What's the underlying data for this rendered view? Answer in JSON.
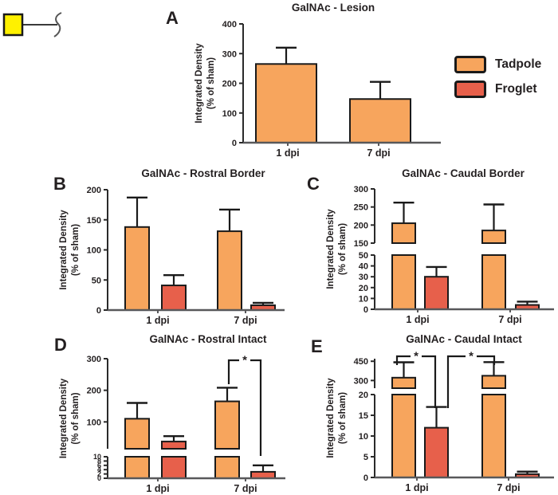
{
  "figure": {
    "glycan_symbol": "GalNAc yellow square with linker squiggle",
    "legend": {
      "items": [
        {
          "label": "Tadpole",
          "color": "#F7A55D"
        },
        {
          "label": "Froglet",
          "color": "#E7604B"
        }
      ]
    },
    "colors": {
      "bar_stroke": "#1a1a1a",
      "y_axis": "#2a2a2a",
      "x_axis": "#58585a",
      "glycan_yellow": "#FFF100"
    }
  },
  "chart_data": [
    {
      "panel": "A",
      "type": "bar",
      "title": "GalNAc -  Lesion",
      "ylabel": [
        "Integrated Density",
        "(% of sham)"
      ],
      "categories": [
        "1 dpi",
        "7 dpi"
      ],
      "axis_segments": [
        {
          "range": [
            0,
            400
          ],
          "ticks": [
            0,
            100,
            200,
            300,
            400
          ]
        }
      ],
      "series": [
        {
          "name": "Tadpole",
          "values": [
            265,
            147
          ],
          "error_tops": [
            320,
            205
          ]
        }
      ],
      "significance": []
    },
    {
      "panel": "B",
      "type": "bar",
      "title": "GalNAc - Rostral Border",
      "ylabel": [
        "Integrated Density",
        "(% of sham)"
      ],
      "categories": [
        "1 dpi",
        "7 dpi"
      ],
      "axis_segments": [
        {
          "range": [
            0,
            200
          ],
          "ticks": [
            0,
            50,
            100,
            150,
            200
          ]
        }
      ],
      "series": [
        {
          "name": "Tadpole",
          "values": [
            138,
            131
          ],
          "error_tops": [
            187,
            167
          ]
        },
        {
          "name": "Froglet",
          "values": [
            41,
            8
          ],
          "error_tops": [
            58,
            12
          ]
        }
      ],
      "significance": []
    },
    {
      "panel": "C",
      "type": "bar",
      "title": "GalNAc - Caudal Border",
      "ylabel": [
        "Integrated Density",
        "(% of sham)"
      ],
      "categories": [
        "1 dpi",
        "7 dpi"
      ],
      "axis_segments": [
        {
          "range": [
            0,
            50
          ],
          "ticks": [
            0,
            10,
            20,
            30,
            40,
            50
          ]
        },
        {
          "range": [
            150,
            300
          ],
          "ticks": [
            150,
            200,
            250,
            300
          ]
        }
      ],
      "series": [
        {
          "name": "Tadpole",
          "values": [
            205,
            185
          ],
          "error_tops": [
            262,
            257
          ]
        },
        {
          "name": "Froglet",
          "values": [
            30,
            4
          ],
          "error_tops": [
            39,
            7
          ]
        }
      ],
      "significance": []
    },
    {
      "panel": "D",
      "type": "bar",
      "title": "GalNAc - Rostral  Intact",
      "ylabel": [
        "Integrated Density",
        "(% of sham)"
      ],
      "categories": [
        "1 dpi",
        "7 dpi"
      ],
      "axis_segments": [
        {
          "range": [
            0,
            10
          ],
          "ticks": [
            0,
            2,
            4,
            6,
            8,
            10
          ]
        },
        {
          "range": [
            15,
            300
          ],
          "ticks": [
            100,
            200,
            300
          ]
        }
      ],
      "series": [
        {
          "name": "Tadpole",
          "values": [
            110,
            165
          ],
          "error_tops": [
            160,
            208
          ]
        },
        {
          "name": "Froglet",
          "values": [
            38,
            3
          ],
          "error_tops": [
            55,
            6
          ]
        }
      ],
      "significance": [
        {
          "label": "*",
          "groups": [
            "Tadpole 7 dpi",
            "Froglet 7 dpi"
          ]
        }
      ]
    },
    {
      "panel": "E",
      "type": "bar",
      "title": "GalNAc - Caudal Intact",
      "ylabel": [
        "Integrated Density",
        "(% of sham)"
      ],
      "categories": [
        "1 dpi",
        "7 dpi"
      ],
      "axis_segments": [
        {
          "range": [
            0,
            20
          ],
          "ticks": [
            0,
            5,
            10,
            15,
            20
          ]
        },
        {
          "range": [
            240,
            470
          ],
          "ticks": [
            300,
            450
          ]
        }
      ],
      "series": [
        {
          "name": "Tadpole",
          "values": [
            322,
            337
          ],
          "error_tops": [
            442,
            443
          ]
        },
        {
          "name": "Froglet",
          "values": [
            12,
            0.8
          ],
          "error_tops": [
            17,
            1.4
          ]
        }
      ],
      "significance": [
        {
          "label": "*",
          "groups": [
            "Tadpole 1 dpi",
            "Froglet 1 dpi"
          ]
        },
        {
          "label": "*",
          "groups": [
            "Froglet 1 dpi",
            "Tadpole 7 dpi"
          ]
        }
      ]
    }
  ]
}
